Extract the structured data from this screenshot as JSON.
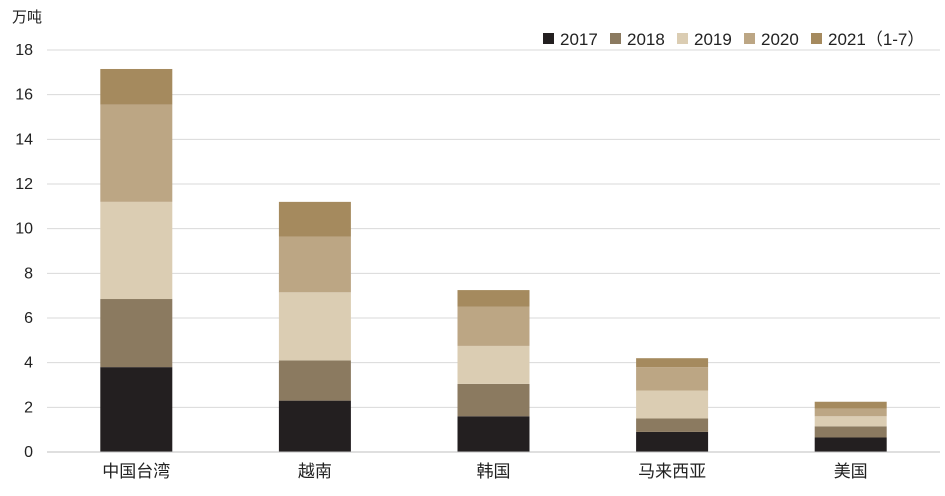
{
  "chart_data": {
    "type": "bar",
    "stacked": true,
    "ylabel": "万吨",
    "ylim": [
      0,
      18
    ],
    "yticks": [
      0,
      2,
      4,
      6,
      8,
      10,
      12,
      14,
      16,
      18
    ],
    "grid": true,
    "legend_position": "top-right",
    "categories": [
      "中国台湾",
      "越南",
      "韩国",
      "马来西亚",
      "美国"
    ],
    "series": [
      {
        "name": "2017",
        "color": "#231f20",
        "values": [
          3.8,
          2.3,
          1.6,
          0.9,
          0.65
        ]
      },
      {
        "name": "2018",
        "color": "#8b7a60",
        "values": [
          3.05,
          1.8,
          1.45,
          0.6,
          0.5
        ]
      },
      {
        "name": "2019",
        "color": "#dbcdb3",
        "values": [
          4.35,
          3.05,
          1.7,
          1.25,
          0.45
        ]
      },
      {
        "name": "2020",
        "color": "#bca684",
        "values": [
          4.35,
          2.5,
          1.75,
          1.05,
          0.35
        ]
      },
      {
        "name": "2021（1-7）",
        "color": "#a58a5e",
        "values": [
          1.6,
          1.55,
          0.75,
          0.4,
          0.3
        ]
      }
    ]
  }
}
